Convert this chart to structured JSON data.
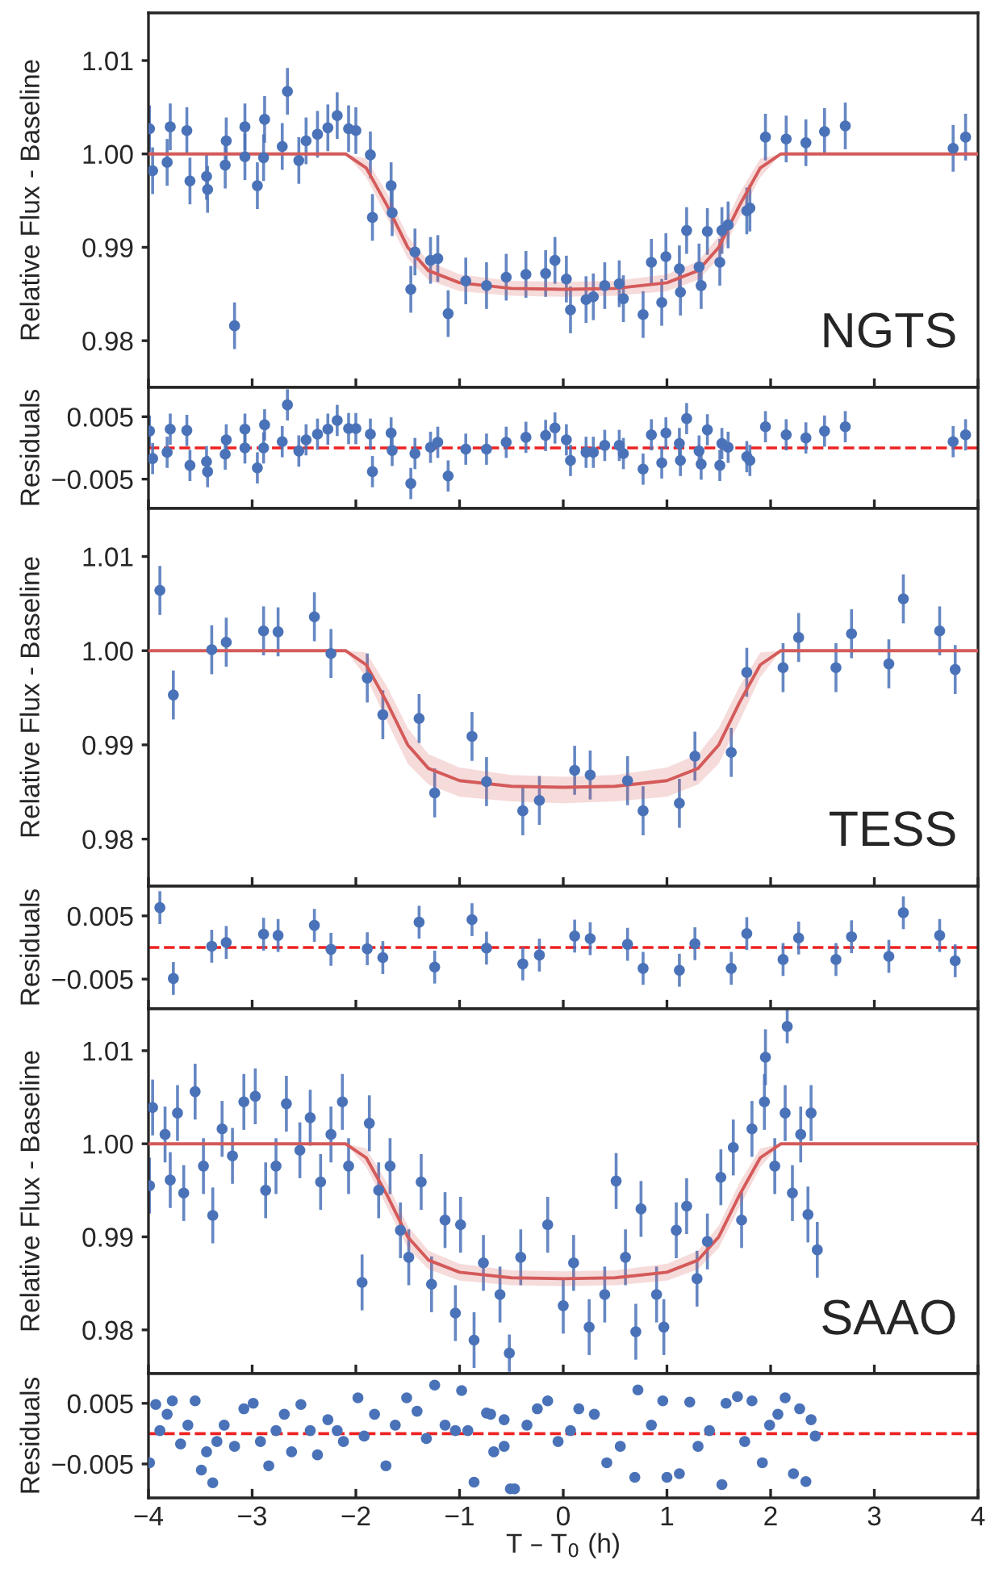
{
  "chart_data": [
    {
      "type": "scatter",
      "ylabel": "Relative Flux - Baseline",
      "annotations": [
        "NGTS"
      ],
      "tick_labels": "y",
      "xlim": [
        -4,
        4
      ],
      "xticks": [
        {
          "value": -4,
          "label": null
        },
        {
          "value": -3,
          "label": null
        },
        {
          "value": -2,
          "label": null
        },
        {
          "value": -1,
          "label": null
        },
        {
          "value": 0,
          "label": null
        },
        {
          "value": 1,
          "label": null
        },
        {
          "value": 2,
          "label": null
        },
        {
          "value": 3,
          "label": null
        },
        {
          "value": 4,
          "label": null
        }
      ],
      "ylim": [
        0.975,
        1.0151
      ],
      "yticks": [
        {
          "value": 0.98,
          "label": "0.98"
        },
        {
          "value": 0.99,
          "label": "0.99"
        },
        {
          "value": 1.0,
          "label": "1.00"
        },
        {
          "value": 1.01,
          "label": "1.01"
        }
      ],
      "series": [
        {
          "marker": "circle",
          "color": "#4a72b8",
          "x": [
            -3.99,
            -3.96,
            -3.82,
            -3.79,
            -3.63,
            -3.6,
            -3.44,
            -3.43,
            -3.26,
            -3.25,
            -3.17,
            -3.07,
            -3.07,
            -2.95,
            -2.89,
            -2.88,
            -2.71,
            -2.66,
            -2.55,
            -2.48,
            -2.37,
            -2.27,
            -2.18,
            -2.07,
            -2.0,
            -1.86,
            -1.84,
            -1.66,
            -1.65,
            -1.47,
            -1.43,
            -1.28,
            -1.21,
            -1.11,
            -0.94,
            -0.74,
            -0.55,
            -0.36,
            -0.17,
            -0.08,
            0.03,
            0.07,
            0.22,
            0.29,
            0.4,
            0.54,
            0.58,
            0.77,
            0.85,
            0.95,
            0.99,
            1.12,
            1.13,
            1.19,
            1.31,
            1.33,
            1.39,
            1.51,
            1.53,
            1.59,
            1.77,
            1.8,
            1.95,
            2.15,
            2.34,
            2.52,
            2.72,
            3.76,
            3.88
          ],
          "values": [
            1.0027,
            0.9982,
            0.9991,
            1.0029,
            1.0025,
            0.9971,
            0.9976,
            0.9962,
            0.9988,
            1.0014,
            0.9816,
            1.0029,
            0.9997,
            0.9966,
            0.9996,
            1.0037,
            1.0008,
            1.0067,
            0.9993,
            1.0014,
            1.0021,
            1.0028,
            1.0041,
            1.0027,
            1.0025,
            0.9999,
            0.9932,
            0.9966,
            0.9937,
            0.9855,
            0.9895,
            0.9886,
            0.9888,
            0.9829,
            0.9864,
            0.9859,
            0.9868,
            0.9871,
            0.9872,
            0.9886,
            0.9866,
            0.9833,
            0.9844,
            0.9847,
            0.9859,
            0.9861,
            0.9845,
            0.9828,
            0.9884,
            0.9841,
            0.989,
            0.9877,
            0.9852,
            0.9918,
            0.9879,
            0.9859,
            0.9917,
            0.9884,
            0.9918,
            0.9924,
            0.9939,
            0.9942,
            1.0018,
            1.0016,
            1.0012,
            1.0024,
            1.003,
            1.0006,
            1.0018
          ],
          "errors": [
            0.0025,
            0.0025,
            0.0025,
            0.0025,
            0.0025,
            0.0025,
            0.0025,
            0.0025,
            0.0025,
            0.0025,
            0.0025,
            0.0025,
            0.0025,
            0.0025,
            0.0025,
            0.0025,
            0.0025,
            0.0025,
            0.0025,
            0.0025,
            0.0025,
            0.0025,
            0.0025,
            0.0025,
            0.0025,
            0.0025,
            0.0025,
            0.0025,
            0.0025,
            0.0025,
            0.0025,
            0.0025,
            0.0025,
            0.0025,
            0.0025,
            0.0025,
            0.0025,
            0.0025,
            0.0025,
            0.0025,
            0.0025,
            0.0025,
            0.0025,
            0.0025,
            0.0025,
            0.0025,
            0.0025,
            0.0025,
            0.0025,
            0.0025,
            0.0025,
            0.0025,
            0.0025,
            0.0025,
            0.0025,
            0.0025,
            0.0025,
            0.0025,
            0.0025,
            0.0025,
            0.0025,
            0.0025,
            0.0025,
            0.0025,
            0.0025,
            0.0025,
            0.0025,
            0.0025,
            0.0025
          ]
        },
        {
          "type": "line",
          "color": "#d45a5a",
          "x": [
            -4,
            -2.1,
            -1.9,
            -1.7,
            -1.5,
            -1.3,
            -1.0,
            -0.5,
            0,
            0.5,
            1.0,
            1.3,
            1.5,
            1.7,
            1.9,
            2.1,
            4
          ],
          "values": [
            1,
            1,
            0.9985,
            0.9945,
            0.99,
            0.9875,
            0.9862,
            0.9856,
            0.9855,
            0.9856,
            0.9862,
            0.9875,
            0.99,
            0.9945,
            0.9985,
            1,
            1
          ],
          "lower": [
            1,
            1,
            0.9975,
            0.9932,
            0.9888,
            0.9865,
            0.9853,
            0.9848,
            0.9847,
            0.9848,
            0.9853,
            0.9865,
            0.9888,
            0.9932,
            0.9975,
            1,
            1
          ],
          "upper": [
            1,
            1,
            0.9995,
            0.9958,
            0.9912,
            0.9885,
            0.9871,
            0.9864,
            0.9863,
            0.9864,
            0.9871,
            0.9885,
            0.9912,
            0.9958,
            0.9995,
            1,
            1
          ]
        }
      ]
    },
    {
      "type": "scatter",
      "ylabel": "Residuals",
      "marker": "circle",
      "tick_labels": "y",
      "xlim": [
        -4,
        4
      ],
      "xticks": [
        {
          "value": -4,
          "label": null
        },
        {
          "value": -3,
          "label": null
        },
        {
          "value": -2,
          "label": null
        },
        {
          "value": -1,
          "label": null
        },
        {
          "value": 0,
          "label": null
        },
        {
          "value": 1,
          "label": null
        },
        {
          "value": 2,
          "label": null
        },
        {
          "value": 3,
          "label": null
        },
        {
          "value": 4,
          "label": null
        }
      ],
      "ylim": [
        -0.0097,
        0.0097
      ],
      "yticks": [
        {
          "value": -0.005,
          "label": "−0.005"
        },
        {
          "value": 0.005,
          "label": "0.005"
        }
      ],
      "ref_lines": [
        {
          "axis": "y",
          "value": 0,
          "color": "#ee2222",
          "line_style": "dashed"
        }
      ],
      "series": [
        {
          "color": "#4a72b8",
          "x": [
            -3.99,
            -3.96,
            -3.82,
            -3.79,
            -3.63,
            -3.6,
            -3.44,
            -3.43,
            -3.26,
            -3.25,
            -3.07,
            -3.07,
            -2.95,
            -2.89,
            -2.88,
            -2.71,
            -2.66,
            -2.55,
            -2.48,
            -2.37,
            -2.27,
            -2.18,
            -2.07,
            -2.0,
            -1.86,
            -1.84,
            -1.66,
            -1.65,
            -1.47,
            -1.43,
            -1.28,
            -1.21,
            -1.11,
            -0.94,
            -0.74,
            -0.55,
            -0.36,
            -0.17,
            -0.08,
            0.03,
            0.07,
            0.22,
            0.29,
            0.4,
            0.54,
            0.58,
            0.77,
            0.85,
            0.95,
            0.99,
            1.12,
            1.13,
            1.19,
            1.31,
            1.33,
            1.39,
            1.51,
            1.53,
            1.59,
            1.77,
            1.8,
            1.95,
            2.15,
            2.34,
            2.52,
            2.72,
            3.76,
            3.88
          ],
          "values": [
            0.0027,
            -0.0017,
            -0.0007,
            0.003,
            0.0028,
            -0.0028,
            -0.0022,
            -0.0038,
            -0.001,
            0.0013,
            0.003,
            0.0,
            -0.0032,
            0.0,
            0.0037,
            0.001,
            0.0069,
            -0.0005,
            0.0013,
            0.0022,
            0.003,
            0.0044,
            0.0031,
            0.0031,
            0.0022,
            -0.0038,
            0.0024,
            -0.0004,
            -0.0057,
            -0.0009,
            0.0001,
            0.0009,
            -0.0045,
            -0.0002,
            -0.0002,
            0.0009,
            0.0017,
            0.002,
            0.0032,
            0.0013,
            -0.002,
            -0.0007,
            -0.0007,
            0.0004,
            0.0004,
            -0.0009,
            -0.0034,
            0.0021,
            -0.0024,
            0.0024,
            0.0007,
            -0.002,
            0.0047,
            -0.0005,
            -0.0026,
            0.0029,
            -0.0028,
            0.0007,
            0.0001,
            -0.0014,
            -0.002,
            0.0034,
            0.0021,
            0.0016,
            0.0027,
            0.0034,
            0.001,
            0.0021
          ],
          "errors": [
            0.0025,
            0.0025,
            0.0025,
            0.0025,
            0.0025,
            0.0025,
            0.0025,
            0.0025,
            0.0025,
            0.0025,
            0.0025,
            0.0025,
            0.0025,
            0.0025,
            0.0025,
            0.0025,
            0.0025,
            0.0025,
            0.0025,
            0.0025,
            0.0025,
            0.0025,
            0.0025,
            0.0025,
            0.0025,
            0.0025,
            0.0025,
            0.0025,
            0.0025,
            0.0025,
            0.0025,
            0.0025,
            0.0025,
            0.0025,
            0.0025,
            0.0025,
            0.0025,
            0.0025,
            0.0025,
            0.0025,
            0.0025,
            0.0025,
            0.0025,
            0.0025,
            0.0025,
            0.0025,
            0.0025,
            0.0025,
            0.0025,
            0.0025,
            0.0025,
            0.0025,
            0.0025,
            0.0025,
            0.0025,
            0.0025,
            0.0025,
            0.0025,
            0.0025,
            0.0025,
            0.0025,
            0.0025,
            0.0025,
            0.0025,
            0.0025,
            0.0025,
            0.0025,
            0.0025
          ]
        }
      ]
    },
    {
      "type": "scatter",
      "ylabel": "Relative Flux - Baseline",
      "annotations": [
        "TESS"
      ],
      "tick_labels": "y",
      "xlim": [
        -4,
        4
      ],
      "xticks": [
        {
          "value": -4,
          "label": null
        },
        {
          "value": -3,
          "label": null
        },
        {
          "value": -2,
          "label": null
        },
        {
          "value": -1,
          "label": null
        },
        {
          "value": 0,
          "label": null
        },
        {
          "value": 1,
          "label": null
        },
        {
          "value": 2,
          "label": null
        },
        {
          "value": 3,
          "label": null
        },
        {
          "value": 4,
          "label": null
        }
      ],
      "ylim": [
        0.975,
        1.0151
      ],
      "yticks": [
        {
          "value": 0.98,
          "label": "0.98"
        },
        {
          "value": 0.99,
          "label": "0.99"
        },
        {
          "value": 1.0,
          "label": "1.00"
        },
        {
          "value": 1.01,
          "label": "1.01"
        }
      ],
      "series": [
        {
          "marker": "circle",
          "color": "#4a72b8",
          "x": [
            -3.89,
            -3.76,
            -3.39,
            -3.25,
            -2.89,
            -2.75,
            -2.4,
            -2.24,
            -1.89,
            -1.74,
            -1.39,
            -1.24,
            -0.88,
            -0.74,
            -0.39,
            -0.23,
            0.11,
            0.26,
            0.62,
            0.77,
            1.12,
            1.27,
            1.62,
            1.77,
            2.12,
            2.27,
            2.63,
            2.78,
            3.14,
            3.28,
            3.63,
            3.78
          ],
          "values": [
            1.0064,
            0.9953,
            1.0001,
            1.0009,
            1.0021,
            1.002,
            1.0036,
            0.9997,
            0.9971,
            0.9932,
            0.9928,
            0.9849,
            0.9909,
            0.9861,
            0.983,
            0.9841,
            0.9873,
            0.9868,
            0.9862,
            0.983,
            0.9838,
            0.9888,
            0.9892,
            0.9977,
            0.9982,
            1.0014,
            0.9982,
            1.0018,
            0.9986,
            1.0055,
            1.0021,
            0.998
          ],
          "errors": [
            0.0026,
            0.0026,
            0.0026,
            0.0026,
            0.0026,
            0.0026,
            0.0026,
            0.0026,
            0.0026,
            0.0026,
            0.0026,
            0.0026,
            0.0026,
            0.0026,
            0.0026,
            0.0026,
            0.0026,
            0.0026,
            0.0026,
            0.0026,
            0.0026,
            0.0026,
            0.0026,
            0.0026,
            0.0026,
            0.0026,
            0.0026,
            0.0026,
            0.0026,
            0.0026,
            0.0026,
            0.0026
          ]
        },
        {
          "type": "line",
          "color": "#d45a5a",
          "x": [
            -4,
            -2.1,
            -1.9,
            -1.7,
            -1.5,
            -1.3,
            -1.0,
            -0.5,
            0,
            0.5,
            1.0,
            1.3,
            1.5,
            1.7,
            1.9,
            2.1,
            4
          ],
          "values": [
            1,
            1,
            0.9985,
            0.9945,
            0.99,
            0.9875,
            0.9862,
            0.9856,
            0.9855,
            0.9856,
            0.9862,
            0.9875,
            0.99,
            0.9945,
            0.9985,
            1,
            1
          ],
          "lower": [
            1,
            1,
            0.9972,
            0.9925,
            0.988,
            0.9858,
            0.9845,
            0.984,
            0.9838,
            0.984,
            0.9845,
            0.9858,
            0.988,
            0.9925,
            0.9972,
            1,
            1
          ],
          "upper": [
            1,
            1,
            0.9998,
            0.9962,
            0.9918,
            0.989,
            0.9876,
            0.9868,
            0.9866,
            0.9868,
            0.9876,
            0.989,
            0.9918,
            0.9962,
            0.9998,
            1,
            1
          ]
        }
      ]
    },
    {
      "type": "scatter",
      "ylabel": "Residuals",
      "marker": "circle",
      "tick_labels": "y",
      "xlim": [
        -4,
        4
      ],
      "xticks": [
        {
          "value": -4,
          "label": null
        },
        {
          "value": -3,
          "label": null
        },
        {
          "value": -2,
          "label": null
        },
        {
          "value": -1,
          "label": null
        },
        {
          "value": 0,
          "label": null
        },
        {
          "value": 1,
          "label": null
        },
        {
          "value": 2,
          "label": null
        },
        {
          "value": 3,
          "label": null
        },
        {
          "value": 4,
          "label": null
        }
      ],
      "ylim": [
        -0.0097,
        0.0097
      ],
      "yticks": [
        {
          "value": -0.005,
          "label": "−0.005"
        },
        {
          "value": 0.005,
          "label": "0.005"
        }
      ],
      "ref_lines": [
        {
          "axis": "y",
          "value": 0,
          "color": "#ee2222",
          "line_style": "dashed"
        }
      ],
      "series": [
        {
          "color": "#4a72b8",
          "x": [
            -3.89,
            -3.76,
            -3.39,
            -3.25,
            -2.89,
            -2.75,
            -2.4,
            -2.24,
            -1.89,
            -1.74,
            -1.39,
            -1.24,
            -0.88,
            -0.74,
            -0.39,
            -0.23,
            0.11,
            0.26,
            0.62,
            0.77,
            1.12,
            1.27,
            1.62,
            1.77,
            2.12,
            2.27,
            2.63,
            2.78,
            3.14,
            3.28,
            3.63,
            3.78
          ],
          "values": [
            0.0063,
            -0.0049,
            0.0002,
            0.0008,
            0.0021,
            0.0019,
            0.0035,
            -0.0003,
            -0.0002,
            -0.0016,
            0.004,
            -0.0031,
            0.0044,
            -0.0001,
            -0.0026,
            -0.0012,
            0.0018,
            0.0014,
            0.0005,
            -0.0033,
            -0.0036,
            0.0006,
            -0.0033,
            0.0022,
            -0.0019,
            0.0015,
            -0.0019,
            0.0017,
            -0.0014,
            0.0055,
            0.0019,
            -0.0021
          ],
          "errors": [
            0.0026,
            0.0026,
            0.0026,
            0.0026,
            0.0026,
            0.0026,
            0.0026,
            0.0026,
            0.0026,
            0.0026,
            0.0026,
            0.0026,
            0.0026,
            0.0026,
            0.0026,
            0.0026,
            0.0026,
            0.0026,
            0.0026,
            0.0026,
            0.0026,
            0.0026,
            0.0026,
            0.0026,
            0.0026,
            0.0026,
            0.0026,
            0.0026,
            0.0026,
            0.0026,
            0.0026,
            0.0026
          ]
        }
      ]
    },
    {
      "type": "scatter",
      "ylabel": "Relative Flux - Baseline",
      "annotations": [
        "SAAO"
      ],
      "tick_labels": "y",
      "xlim": [
        -4,
        4
      ],
      "xticks": [
        {
          "value": -4,
          "label": null
        },
        {
          "value": -3,
          "label": null
        },
        {
          "value": -2,
          "label": null
        },
        {
          "value": -1,
          "label": null
        },
        {
          "value": 0,
          "label": null
        },
        {
          "value": 1,
          "label": null
        },
        {
          "value": 2,
          "label": null
        },
        {
          "value": 3,
          "label": null
        },
        {
          "value": 4,
          "label": null
        }
      ],
      "ylim": [
        0.9753,
        1.0145
      ],
      "yticks": [
        {
          "value": 0.98,
          "label": "0.98"
        },
        {
          "value": 0.99,
          "label": "0.99"
        },
        {
          "value": 1.0,
          "label": "1.00"
        },
        {
          "value": 1.01,
          "label": "1.01"
        }
      ],
      "series": [
        {
          "marker": "circle",
          "color": "#4a72b8",
          "x": [
            -3.99,
            -3.96,
            -3.84,
            -3.79,
            -3.72,
            -3.66,
            -3.55,
            -3.47,
            -3.38,
            -3.29,
            -3.19,
            -3.08,
            -2.97,
            -2.87,
            -2.77,
            -2.67,
            -2.54,
            -2.44,
            -2.34,
            -2.24,
            -2.13,
            -2.07,
            -1.94,
            -1.87,
            -1.78,
            -1.67,
            -1.57,
            -1.49,
            -1.37,
            -1.27,
            -1.14,
            -1.04,
            -0.99,
            -0.86,
            -0.77,
            -0.61,
            -0.52,
            -0.41,
            -0.15,
            0.0,
            0.1,
            0.25,
            0.4,
            0.51,
            0.6,
            0.7,
            0.75,
            0.9,
            0.97,
            1.09,
            1.19,
            1.29,
            1.39,
            1.52,
            1.64,
            1.72,
            1.82,
            1.94,
            1.95,
            2.04,
            2.14,
            2.16,
            2.21,
            2.29,
            2.36,
            2.39,
            2.45
          ],
          "values": [
            0.9955,
            1.0039,
            1.001,
            0.9961,
            1.0033,
            0.9947,
            1.0056,
            0.9976,
            0.9923,
            1.0016,
            0.9987,
            1.0045,
            1.0051,
            0.995,
            0.9976,
            1.0043,
            0.9993,
            1.0028,
            0.9959,
            1.001,
            1.0045,
            0.9976,
            0.9851,
            1.0022,
            0.995,
            0.9976,
            0.9907,
            0.9878,
            0.9959,
            0.9849,
            0.9918,
            0.9818,
            0.9913,
            0.9789,
            0.9872,
            0.9838,
            0.9775,
            0.9878,
            0.9913,
            0.9826,
            0.9872,
            0.9803,
            0.9838,
            0.996,
            0.9878,
            0.9798,
            0.993,
            0.9838,
            0.9803,
            0.9907,
            0.9933,
            0.9855,
            0.9895,
            0.9964,
            0.9996,
            0.9918,
            1.0016,
            1.0045,
            1.0093,
            0.9976,
            1.0033,
            1.0126,
            0.9947,
            1.001,
            0.9924,
            1.0033,
            0.9886
          ],
          "errors": [
            0.003,
            0.003,
            0.003,
            0.003,
            0.003,
            0.003,
            0.003,
            0.003,
            0.003,
            0.003,
            0.003,
            0.003,
            0.003,
            0.003,
            0.003,
            0.003,
            0.003,
            0.003,
            0.003,
            0.003,
            0.003,
            0.003,
            0.003,
            0.003,
            0.003,
            0.003,
            0.003,
            0.003,
            0.003,
            0.003,
            0.003,
            0.003,
            0.003,
            0.003,
            0.003,
            0.003,
            0.002,
            0.003,
            0.003,
            0.003,
            0.003,
            0.003,
            0.003,
            0.003,
            0.003,
            0.003,
            0.003,
            0.003,
            0.003,
            0.003,
            0.003,
            0.003,
            0.003,
            0.003,
            0.003,
            0.003,
            0.003,
            0.003,
            0.003,
            0.003,
            0.003,
            0.0018,
            0.003,
            0.003,
            0.003,
            0.003,
            0.003
          ]
        },
        {
          "type": "line",
          "color": "#d45a5a",
          "x": [
            -4,
            -2.1,
            -1.9,
            -1.7,
            -1.5,
            -1.3,
            -1.0,
            -0.5,
            0,
            0.5,
            1.0,
            1.3,
            1.5,
            1.7,
            1.9,
            2.1,
            4
          ],
          "values": [
            1,
            1,
            0.9985,
            0.9945,
            0.99,
            0.9875,
            0.9862,
            0.9856,
            0.9855,
            0.9856,
            0.9862,
            0.9875,
            0.99,
            0.9945,
            0.9985,
            1,
            1
          ],
          "lower": [
            1,
            1,
            0.9975,
            0.9932,
            0.9888,
            0.9865,
            0.9853,
            0.9848,
            0.9847,
            0.9848,
            0.9853,
            0.9865,
            0.9888,
            0.9932,
            0.9975,
            1,
            1
          ],
          "upper": [
            1,
            1,
            0.9995,
            0.9958,
            0.9912,
            0.9885,
            0.9871,
            0.9864,
            0.9863,
            0.9864,
            0.9871,
            0.9885,
            0.9912,
            0.9958,
            0.9995,
            1,
            1
          ]
        }
      ]
    },
    {
      "type": "scatter",
      "ylabel": "Residuals",
      "xlabel": "T – T$_{0}$ (h)",
      "marker": "circle",
      "xlim": [
        -4,
        4
      ],
      "xticks": [
        {
          "value": -4,
          "label": "−4"
        },
        {
          "value": -3,
          "label": "−3"
        },
        {
          "value": -2,
          "label": "−2"
        },
        {
          "value": -1,
          "label": "−1"
        },
        0,
        1,
        2,
        3,
        4
      ],
      "ylim": [
        -0.0106,
        0.0099
      ],
      "yticks": [
        {
          "value": -0.005,
          "label": "−0.005"
        },
        {
          "value": 0.005,
          "label": "0.005"
        }
      ],
      "ref_lines": [
        {
          "axis": "y",
          "value": 0,
          "color": "#ee2222",
          "line_style": "dashed"
        }
      ],
      "series": [
        {
          "color": "#4a72b8",
          "x": [
            -3.99,
            -3.93,
            -3.89,
            -3.82,
            -3.77,
            -3.69,
            -3.62,
            -3.55,
            -3.49,
            -3.44,
            -3.38,
            -3.34,
            -3.27,
            -3.17,
            -3.08,
            -2.99,
            -2.92,
            -2.84,
            -2.77,
            -2.69,
            -2.62,
            -2.53,
            -2.44,
            -2.37,
            -2.27,
            -2.18,
            -2.12,
            -1.98,
            -1.92,
            -1.82,
            -1.71,
            -1.62,
            -1.51,
            -1.41,
            -1.32,
            -1.24,
            -1.14,
            -1.04,
            -0.98,
            -0.92,
            -0.86,
            -0.74,
            -0.67,
            -0.57,
            -0.51,
            -0.7,
            -0.57,
            -0.47,
            -0.35,
            -0.25,
            -0.15,
            -0.05,
            0.07,
            0.15,
            0.3,
            0.42,
            0.55,
            0.69,
            0.72,
            0.85,
            0.96,
            1.0,
            1.12,
            1.22,
            1.3,
            1.41,
            1.53,
            1.57,
            1.68,
            1.75,
            1.82,
            1.92,
            1.99,
            2.07,
            2.14,
            2.22,
            2.28,
            2.34,
            2.39,
            2.43
          ],
          "values": [
            -0.0048,
            0.0048,
            0.0005,
            0.0032,
            0.0054,
            -0.0017,
            0.0014,
            0.0054,
            -0.006,
            -0.003,
            -0.0081,
            -0.0013,
            0.0014,
            -0.0021,
            0.0041,
            0.005,
            -0.0013,
            -0.0053,
            0.0005,
            0.0032,
            -0.003,
            0.0048,
            0.0005,
            -0.0035,
            0.0023,
            0.0005,
            -0.0013,
            0.0059,
            -0.0004,
            0.0032,
            -0.0053,
            0.0014,
            0.0059,
            0.0037,
            -0.0008,
            0.008,
            0.0014,
            0.0005,
            0.0071,
            0.0005,
            -0.008,
            0.0034,
            -0.003,
            0.0023,
            -0.0091,
            0.0032,
            -0.0021,
            -0.0091,
            0.0014,
            0.0041,
            0.0054,
            -0.0013,
            0.0005,
            0.0041,
            0.0032,
            -0.0048,
            -0.0021,
            -0.0072,
            0.0072,
            0.0014,
            0.0054,
            -0.0072,
            -0.0066,
            0.0052,
            -0.0021,
            0.0005,
            -0.0084,
            0.005,
            0.0061,
            -0.0013,
            0.0054,
            -0.0048,
            0.0014,
            0.0032,
            0.0059,
            -0.0066,
            0.0041,
            -0.0079,
            0.0023,
            -0.0004
          ]
        }
      ]
    }
  ]
}
